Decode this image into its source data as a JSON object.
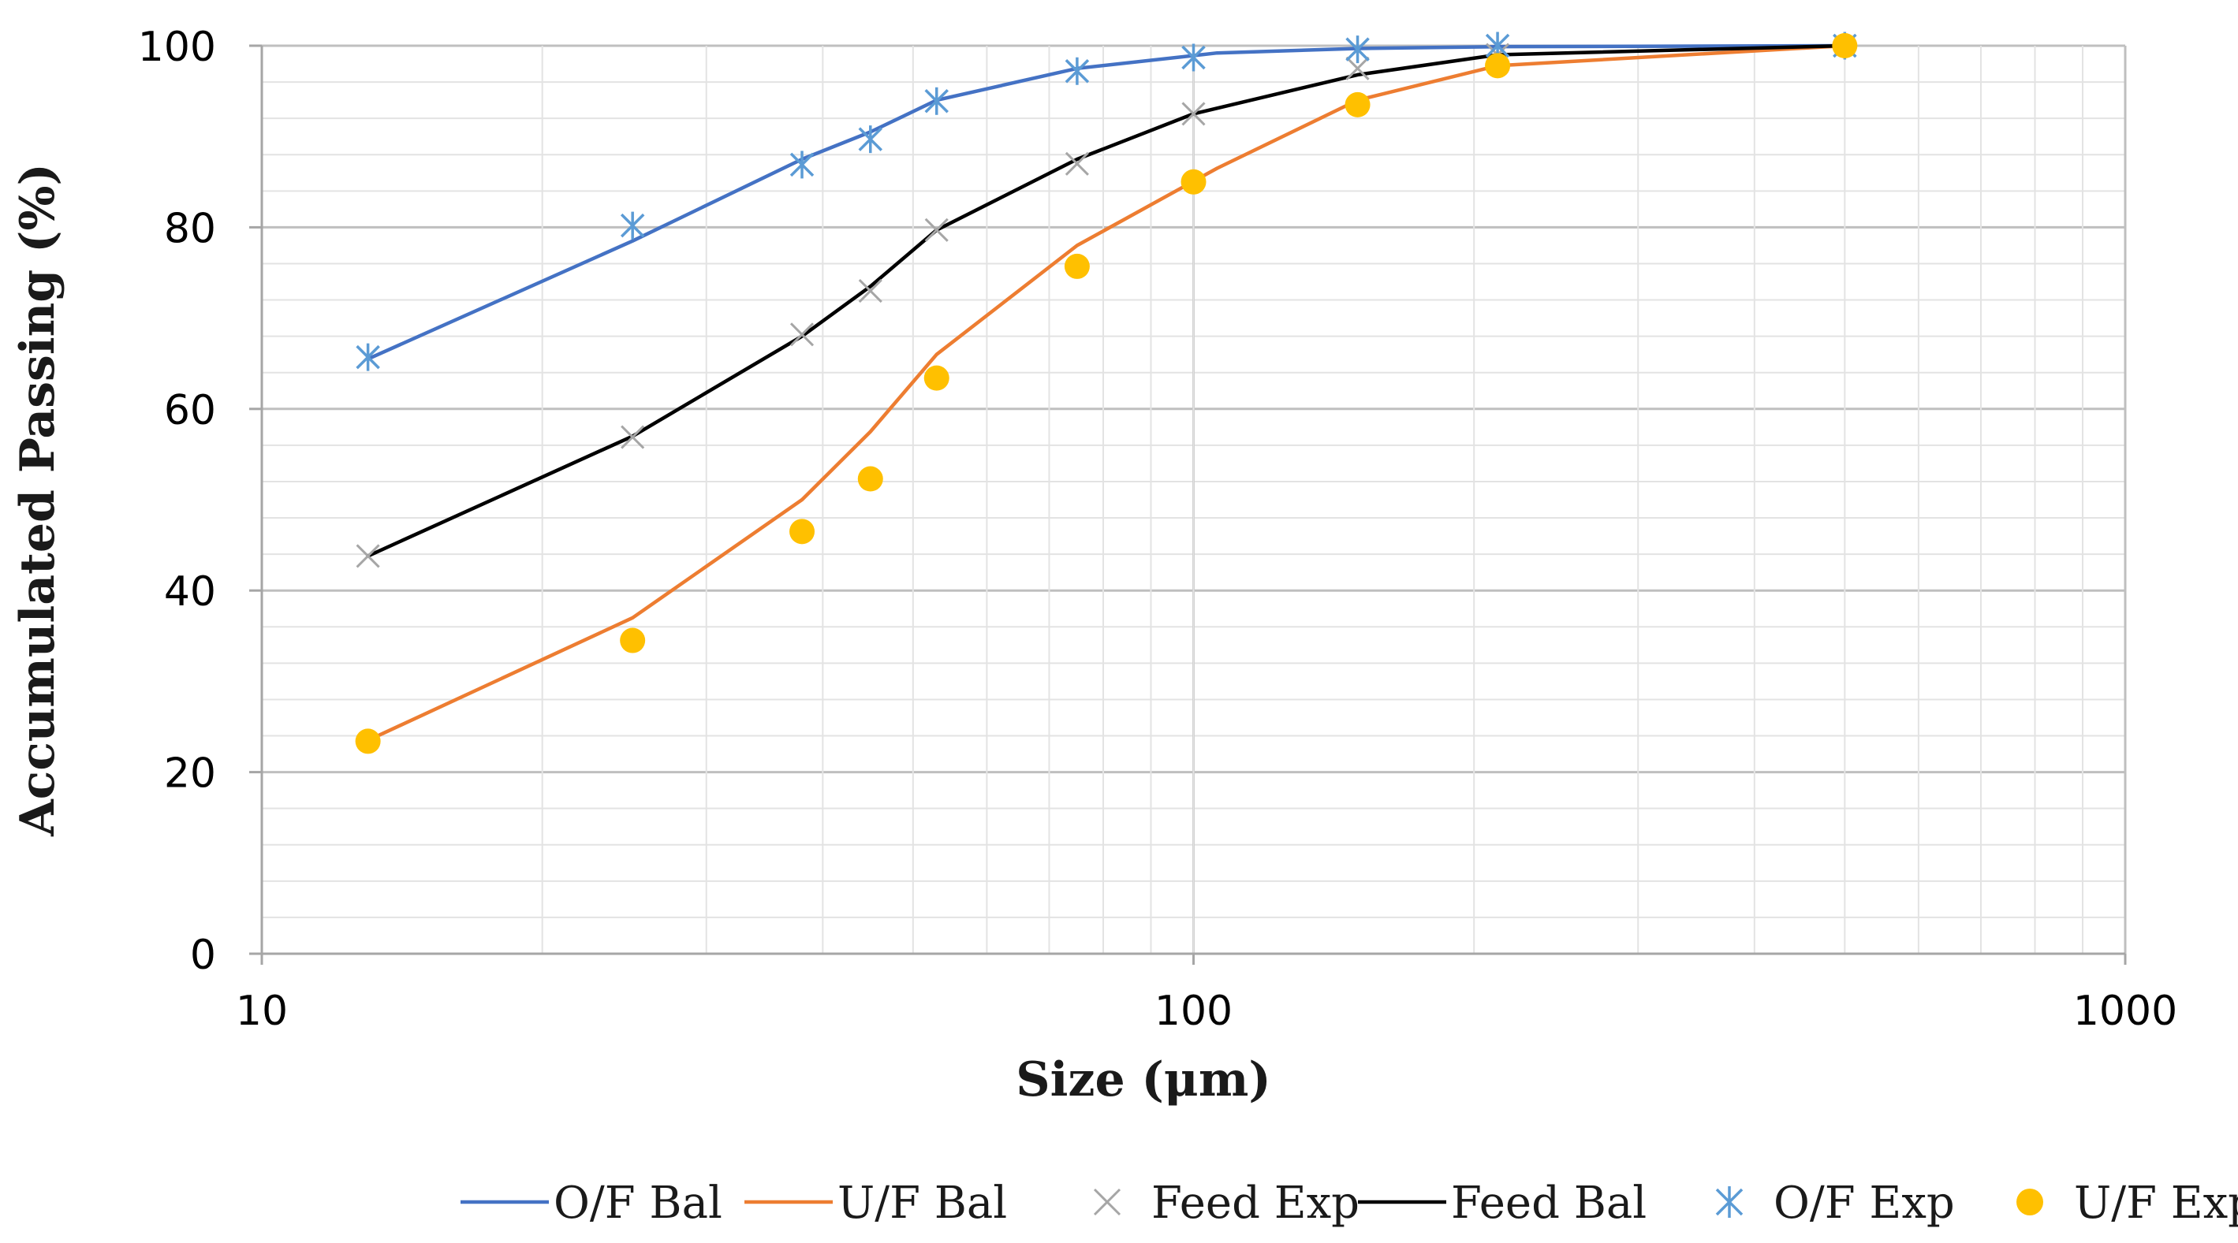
{
  "chart_data": {
    "type": "line",
    "title": "",
    "xlabel": "Size (μm)",
    "ylabel": "Accumulated Passing (%)",
    "xscale": "log",
    "xlim": [
      10,
      1000
    ],
    "ylim": [
      0,
      100
    ],
    "x_ticks": [
      "10",
      "100",
      "1000"
    ],
    "y_ticks": [
      "0",
      "20",
      "40",
      "60",
      "80",
      "100"
    ],
    "grid": true,
    "legend_position": "bottom",
    "series": [
      {
        "name": "O/F Bal",
        "kind": "line",
        "color": "#4472C4",
        "x": [
          13,
          25,
          38,
          45,
          53,
          75,
          106,
          150,
          212,
          500
        ],
        "y": [
          65.5,
          78.5,
          87.5,
          90.5,
          94,
          97.5,
          99.2,
          99.7,
          99.9,
          100
        ]
      },
      {
        "name": "U/F Bal",
        "kind": "line",
        "color": "#ED7D31",
        "x": [
          13,
          25,
          38,
          45,
          53,
          75,
          106,
          150,
          212,
          500
        ],
        "y": [
          23.5,
          37,
          50,
          57.5,
          66,
          78,
          86.5,
          94,
          97.8,
          100
        ]
      },
      {
        "name": "Feed Exp",
        "kind": "marker-x",
        "color": "#A6A6A6",
        "x": [
          13,
          25,
          38,
          45,
          53,
          75,
          100,
          150,
          212,
          500
        ],
        "y": [
          43.8,
          56.9,
          68.2,
          73,
          79.7,
          87,
          92.5,
          97.5,
          99,
          100
        ]
      },
      {
        "name": "Feed Bal",
        "kind": "line",
        "color": "#000000",
        "x": [
          13,
          25,
          38,
          45,
          53,
          75,
          100,
          150,
          212,
          500
        ],
        "y": [
          43.8,
          57,
          68,
          73.5,
          79.7,
          87.5,
          92.5,
          96.8,
          99,
          100
        ]
      },
      {
        "name": "O/F Exp",
        "kind": "marker-asterisk",
        "color": "#5B9BD5",
        "x": [
          13,
          25,
          38,
          45,
          53,
          75,
          100,
          150,
          212,
          500
        ],
        "y": [
          65.7,
          80.2,
          86.9,
          89.7,
          93.9,
          97.2,
          98.7,
          99.6,
          100,
          100
        ]
      },
      {
        "name": "U/F Exp",
        "kind": "marker-dot",
        "color": "#FFC000",
        "x": [
          13,
          25,
          38,
          45,
          53,
          75,
          100,
          150,
          212,
          500
        ],
        "y": [
          23.4,
          34.5,
          46.5,
          52.3,
          63.4,
          75.7,
          85,
          93.5,
          97.8,
          100
        ]
      }
    ]
  }
}
